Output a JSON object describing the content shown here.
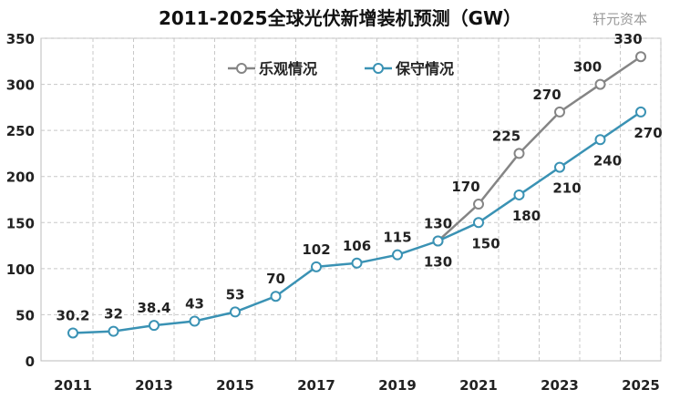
{
  "chart_data": {
    "type": "line",
    "title": "2011-2025全球光伏新增装机预测（GW）",
    "x": [
      2011,
      2012,
      2013,
      2014,
      2015,
      2016,
      2017,
      2018,
      2019,
      2020,
      2021,
      2022,
      2023,
      2024,
      2025
    ],
    "x_tick_labels": [
      "2011",
      "2013",
      "2015",
      "2017",
      "2019",
      "2021",
      "2023",
      "2025"
    ],
    "ylim": [
      0,
      350
    ],
    "y_ticks": [
      0,
      50,
      100,
      150,
      200,
      250,
      300,
      350
    ],
    "grid": true,
    "legend_position": "top",
    "series": [
      {
        "name": "乐观情况",
        "color": "#858585",
        "x": [
          2020,
          2021,
          2022,
          2023,
          2024,
          2025
        ],
        "values": [
          130,
          170,
          225,
          270,
          300,
          330
        ],
        "labels": [
          "",
          "170",
          "225",
          "270",
          "300",
          "330"
        ]
      },
      {
        "name": "保守情况",
        "color": "#3a92b4",
        "x": [
          2011,
          2012,
          2013,
          2014,
          2015,
          2016,
          2017,
          2018,
          2019,
          2020,
          2021,
          2022,
          2023,
          2024,
          2025
        ],
        "values": [
          30.2,
          32,
          38.4,
          43,
          53,
          70,
          102,
          106,
          115,
          130,
          150,
          180,
          210,
          240,
          270
        ],
        "labels": [
          "30.2",
          "32",
          "38.4",
          "43",
          "53",
          "70",
          "102",
          "106",
          "115",
          "130",
          "150",
          "180",
          "210",
          "240",
          "270"
        ],
        "extra_label_2020": "130"
      }
    ]
  },
  "watermark": "轩元资本"
}
